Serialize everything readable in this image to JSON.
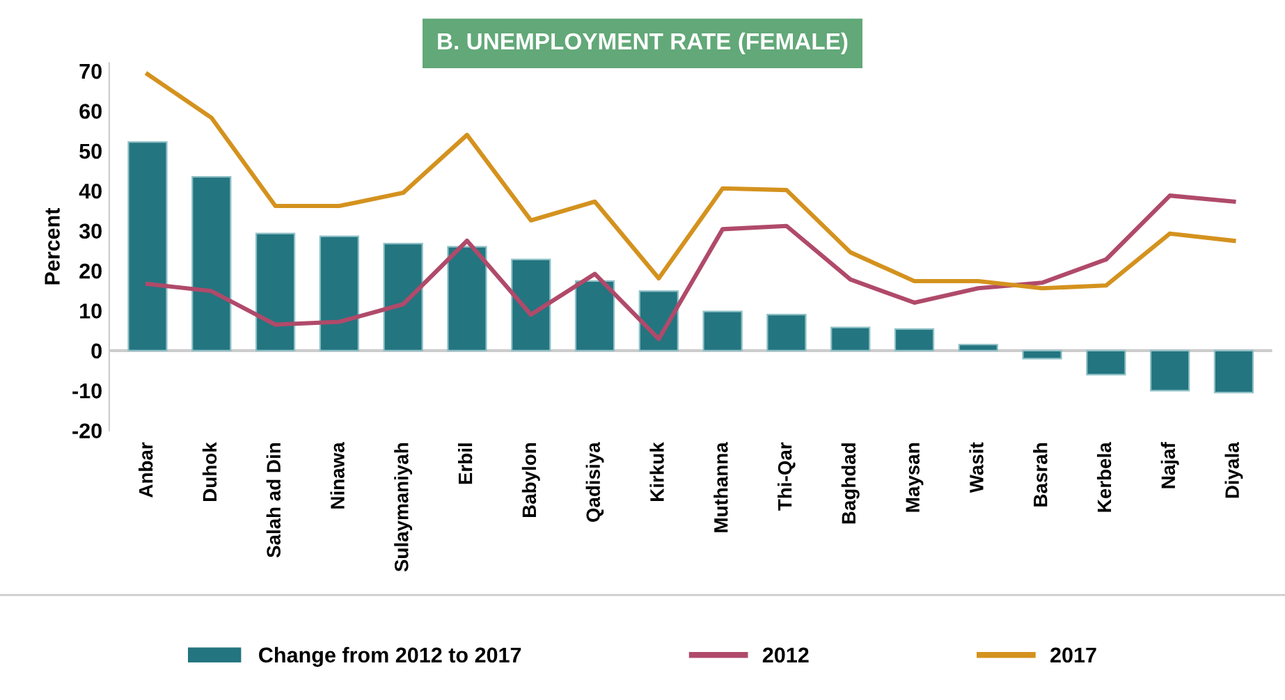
{
  "chart_data": {
    "type": "bar",
    "title": "B. UNEMPLOYMENT RATE (FEMALE)",
    "ylabel": "Percent",
    "categories": [
      "Anbar",
      "Duhok",
      "Salah ad Din",
      "Ninawa",
      "Sulaymaniyah",
      "Erbil",
      "Babylon",
      "Qadisiya",
      "Kirkuk",
      "Muthanna",
      "Thi-Qar",
      "Baghdad",
      "Maysan",
      "Wasit",
      "Basrah",
      "Kerbela",
      "Najaf",
      "Diyala"
    ],
    "series": [
      {
        "name": "Change from 2012 to 2017",
        "color": "#237580",
        "values": [
          52.2,
          43.5,
          29.3,
          28.6,
          26.8,
          26,
          22.8,
          17.4,
          14.9,
          9.8,
          9,
          5.8,
          5.4,
          1.5,
          -2,
          -6,
          -10,
          -10.5
        ]
      },
      {
        "name": "2012",
        "type": "line",
        "color": "#b04a6a",
        "values": [
          16.7,
          14.9,
          6.5,
          7.2,
          11.6,
          27.5,
          9,
          19.2,
          2.9,
          30.4,
          31.2,
          17.8,
          12,
          15.6,
          17,
          22.8,
          38.8,
          37.3
        ]
      },
      {
        "name": "2017",
        "type": "line",
        "color": "#d4921e",
        "values": [
          69.2,
          58.3,
          36.2,
          36.2,
          39.5,
          54,
          32.6,
          37.3,
          18.1,
          40.6,
          40.2,
          24.6,
          17.4,
          17.4,
          15.6,
          16.3,
          29.3,
          27.5
        ]
      }
    ],
    "ylim": [
      -20,
      72
    ],
    "yticks": [
      -20,
      -10,
      0,
      10,
      20,
      30,
      40,
      50,
      60,
      70
    ],
    "grid": false,
    "ref_lines": [
      {
        "axis": "y",
        "value": 0,
        "color": "#cccccc",
        "line_style": "solid"
      }
    ],
    "legend": "bottom",
    "marker": "none",
    "line_style": "solid"
  }
}
